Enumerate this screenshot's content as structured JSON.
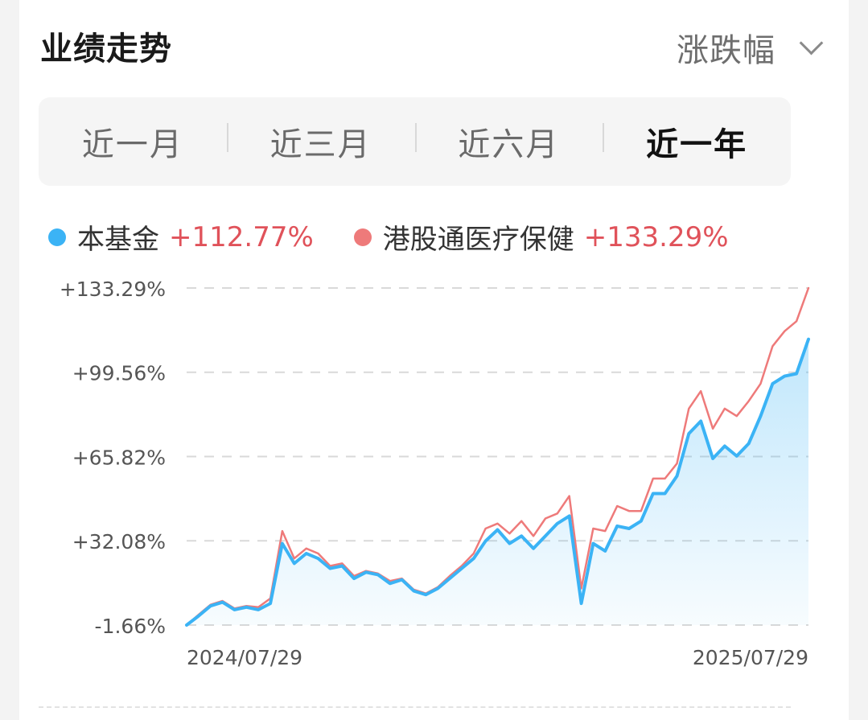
{
  "header": {
    "title": "业绩走势",
    "metric_label": "涨跌幅",
    "metric_icon": "chevron-down-icon"
  },
  "tabs": [
    {
      "label": "近一月",
      "active": false
    },
    {
      "label": "近三月",
      "active": false
    },
    {
      "label": "近六月",
      "active": false
    },
    {
      "label": "近一年",
      "active": true
    }
  ],
  "legend": [
    {
      "name": "本基金",
      "value": "+112.77%",
      "color": "#3bb3f5"
    },
    {
      "name": "港股通医疗保健",
      "value": "+133.29%",
      "color": "#ee7a7a"
    }
  ],
  "chart_data": {
    "type": "line",
    "title": "",
    "xlabel": "",
    "ylabel": "",
    "x_tick_labels": [
      "2024/07/29",
      "2025/07/29"
    ],
    "y_tick_labels": [
      "+133.29%",
      "+99.56%",
      "+65.82%",
      "+32.08%",
      "-1.66%"
    ],
    "y_tick_values": [
      133.29,
      99.56,
      65.82,
      32.08,
      -1.66
    ],
    "ylim": [
      -1.66,
      133.29
    ],
    "xlim": [
      "2024/07/29",
      "2025/07/29"
    ],
    "grid": "horizontal dashed",
    "area_fill_series": "本基金",
    "x": [
      "2024/07/29",
      "2024/08/05",
      "2024/08/12",
      "2024/08/19",
      "2024/08/26",
      "2024/09/02",
      "2024/09/09",
      "2024/09/16",
      "2024/09/23",
      "2024/09/30",
      "2024/10/07",
      "2024/10/14",
      "2024/10/21",
      "2024/10/28",
      "2024/11/04",
      "2024/11/11",
      "2024/11/18",
      "2024/11/25",
      "2024/12/02",
      "2024/12/09",
      "2024/12/16",
      "2024/12/23",
      "2024/12/30",
      "2025/01/06",
      "2025/01/13",
      "2025/01/20",
      "2025/01/27",
      "2025/02/03",
      "2025/02/10",
      "2025/02/17",
      "2025/02/24",
      "2025/03/03",
      "2025/03/10",
      "2025/03/17",
      "2025/03/24",
      "2025/03/31",
      "2025/04/07",
      "2025/04/14",
      "2025/04/21",
      "2025/04/28",
      "2025/05/05",
      "2025/05/12",
      "2025/05/19",
      "2025/05/26",
      "2025/06/02",
      "2025/06/09",
      "2025/06/16",
      "2025/06/23",
      "2025/06/30",
      "2025/07/07",
      "2025/07/14",
      "2025/07/21",
      "2025/07/29"
    ],
    "series": [
      {
        "name": "本基金",
        "color": "#3bb3f5",
        "values": [
          -1.66,
          2.0,
          6.0,
          7.5,
          4.5,
          5.5,
          4.5,
          7.0,
          31.0,
          23.0,
          27.0,
          25.0,
          21.0,
          22.0,
          17.0,
          19.5,
          18.5,
          15.0,
          16.5,
          12.0,
          10.5,
          13.0,
          17.0,
          21.0,
          25.0,
          32.0,
          36.5,
          31.0,
          34.0,
          29.0,
          34.0,
          39.0,
          42.0,
          7.0,
          31.0,
          28.0,
          38.0,
          37.0,
          40.0,
          51.0,
          51.0,
          58.0,
          75.0,
          80.0,
          65.0,
          70.0,
          66.0,
          71.0,
          82.0,
          95.0,
          98.0,
          99.0,
          112.77
        ]
      },
      {
        "name": "港股通医疗保健",
        "color": "#ee7a7a",
        "values": [
          -1.66,
          2.5,
          6.5,
          8.0,
          5.0,
          6.0,
          5.5,
          9.0,
          36.0,
          25.0,
          29.0,
          27.0,
          22.0,
          23.0,
          18.0,
          20.0,
          19.0,
          16.0,
          17.0,
          12.5,
          11.0,
          13.5,
          18.0,
          22.0,
          27.0,
          37.0,
          39.0,
          35.0,
          40.0,
          34.0,
          41.0,
          43.0,
          50.0,
          13.0,
          37.0,
          36.0,
          46.0,
          44.0,
          44.0,
          57.0,
          57.0,
          63.0,
          85.0,
          92.0,
          77.0,
          85.0,
          82.0,
          88.0,
          95.0,
          110.0,
          116.0,
          120.0,
          133.29
        ]
      }
    ]
  }
}
